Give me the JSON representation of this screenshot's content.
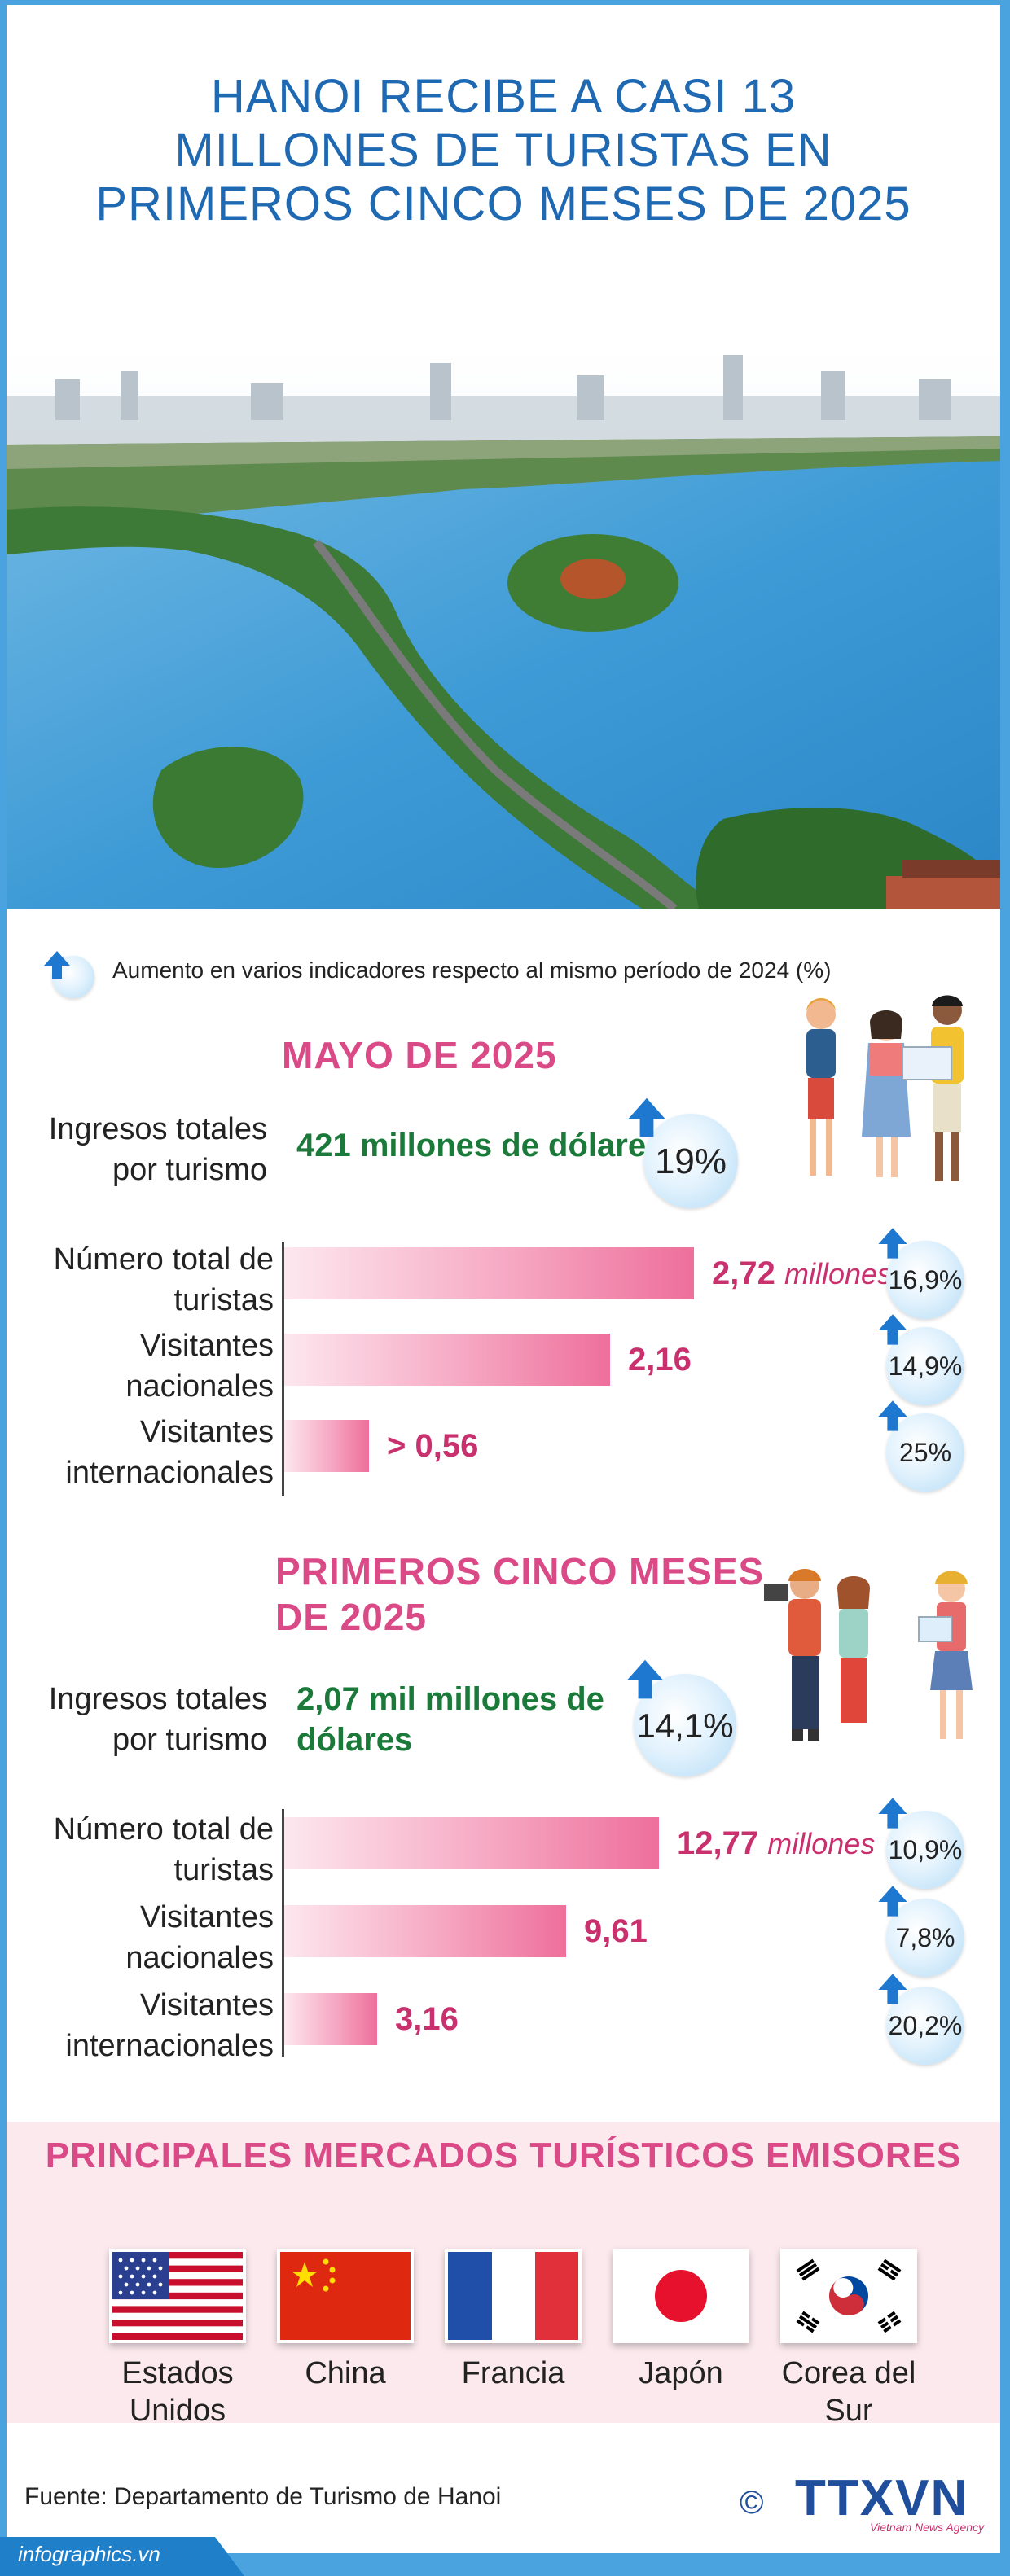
{
  "title": {
    "line1": "HANOI RECIBE A CASI 13",
    "line2": "MILLONES DE TURISTAS EN",
    "line3": "PRIMEROS CINCO MESES DE 2025"
  },
  "legend": "Aumento en varios indicadores respecto al mismo período de 2024 (%)",
  "may": {
    "heading": "MAYO DE 2025",
    "revenue_label_1": "Ingresos totales",
    "revenue_label_2": "por turismo",
    "revenue_value": "421 millones de dólares",
    "revenue_change": "19%",
    "rows": [
      {
        "label_1": "Número total de",
        "label_2": "turistas",
        "value": "2,72",
        "unit": "millones",
        "amount": 2.72,
        "change": "16,9%"
      },
      {
        "label_1": "Visitantes",
        "label_2": "nacionales",
        "value": "2,16",
        "unit": "",
        "amount": 2.16,
        "change": "14,9%"
      },
      {
        "label_1": "Visitantes",
        "label_2": "internacionales",
        "value": "> 0,56",
        "unit": "",
        "amount": 0.56,
        "change": "25%"
      }
    ]
  },
  "five_months": {
    "heading_1": "PRIMEROS CINCO MESES",
    "heading_2": "DE 2025",
    "revenue_label_1": "Ingresos totales",
    "revenue_label_2": "por turismo",
    "revenue_value_1": "2,07 mil millones de",
    "revenue_value_2": "dólares",
    "revenue_change": "14,1%",
    "rows": [
      {
        "label_1": "Número total de",
        "label_2": "turistas",
        "value": "12,77",
        "unit": "millones",
        "amount": 12.77,
        "change": "10,9%"
      },
      {
        "label_1": "Visitantes",
        "label_2": "nacionales",
        "value": "9,61",
        "unit": "",
        "amount": 9.61,
        "change": "7,8%"
      },
      {
        "label_1": "Visitantes",
        "label_2": "internacionales",
        "value": "3,16",
        "unit": "",
        "amount": 3.16,
        "change": "20,2%"
      }
    ]
  },
  "markets": {
    "heading": "PRINCIPALES MERCADOS TURÍSTICOS EMISORES",
    "countries": [
      {
        "line1": "Estados",
        "line2": "Unidos"
      },
      {
        "line1": "China",
        "line2": ""
      },
      {
        "line1": "Francia",
        "line2": ""
      },
      {
        "line1": "Japón",
        "line2": ""
      },
      {
        "line1": "Corea del",
        "line2": "Sur"
      }
    ]
  },
  "source": "Fuente: Departamento de Turismo de Hanoi",
  "site": "infographics.vn",
  "logo": {
    "copyright": "©",
    "brand": "TTXVN",
    "sub": "Vietnam News Agency"
  },
  "colors": {
    "title_blue": "#1f69b3",
    "accent_pink": "#d94a86",
    "value_green": "#1b7a3a",
    "frame_blue": "#4aa3df"
  }
}
